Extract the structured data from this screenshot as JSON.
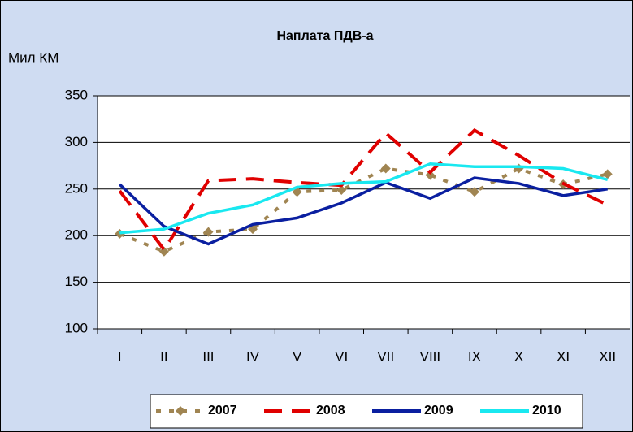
{
  "chart_data": {
    "type": "line",
    "title": "Наплата ПДВ-а",
    "y_label": "Мил КМ",
    "categories": [
      "I",
      "II",
      "III",
      "IV",
      "V",
      "VI",
      "VII",
      "VIII",
      "IX",
      "X",
      "XI",
      "XII"
    ],
    "series": [
      {
        "name": "2007",
        "color": "#a08552",
        "dash": "6,10",
        "marker": "diamond",
        "values": [
          202,
          183,
          204,
          207,
          247,
          249,
          272,
          265,
          247,
          272,
          255,
          266
        ]
      },
      {
        "name": "2008",
        "color": "#e00000",
        "dash": "22,12",
        "values": [
          248,
          185,
          259,
          261,
          257,
          254,
          310,
          268,
          313,
          286,
          256,
          233
        ]
      },
      {
        "name": "2009",
        "color": "#0a1fa0",
        "values": [
          255,
          210,
          191,
          212,
          219,
          235,
          257,
          240,
          262,
          256,
          243,
          250
        ]
      },
      {
        "name": "2010",
        "color": "#19e8f0",
        "values": [
          203,
          207,
          224,
          233,
          252,
          256,
          258,
          277,
          274,
          274,
          272,
          260
        ]
      }
    ],
    "ylim": [
      100,
      350
    ],
    "yticks": [
      100,
      150,
      200,
      250,
      300,
      350
    ],
    "grid": true,
    "legend": "bottom"
  }
}
